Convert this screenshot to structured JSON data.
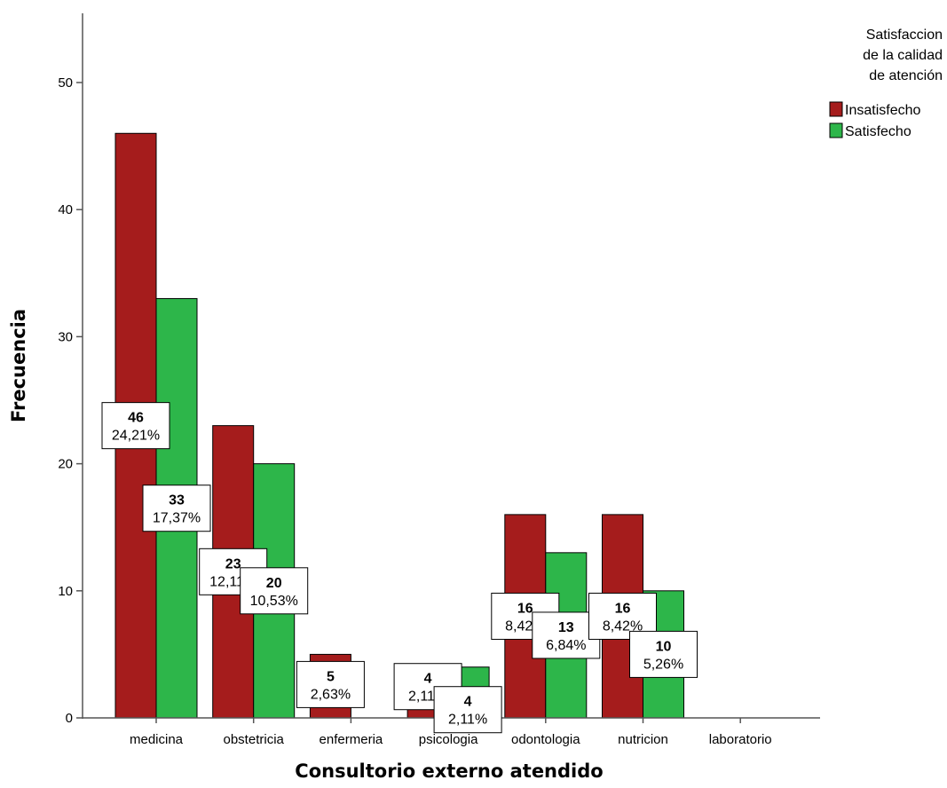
{
  "chart_data": {
    "type": "bar",
    "xlabel": "Consultorio externo atendido",
    "ylabel": "Frecuencia",
    "ylim": [
      0,
      55
    ],
    "yticks": [
      0,
      10,
      20,
      30,
      40,
      50
    ],
    "categories": [
      "medicina",
      "obstetricia",
      "enfermeria",
      "psicologia",
      "odontologia",
      "nutricion",
      "laboratorio"
    ],
    "legend_title": [
      "Satisfaccion",
      "de la calidad",
      "de atención"
    ],
    "legend_position": "top-right",
    "grid": false,
    "series": [
      {
        "name": "Insatisfecho",
        "color": "#a51c1c",
        "values": [
          46,
          23,
          5,
          4,
          16,
          16,
          0
        ],
        "count_labels": [
          "46",
          "23",
          "5",
          "4",
          "16",
          "16",
          ""
        ],
        "pct_labels": [
          "24,21%",
          "12,11%",
          "2,63%",
          "2,11%",
          "8,42%",
          "8,42%",
          ""
        ]
      },
      {
        "name": "Satisfecho",
        "color": "#2db64a",
        "values": [
          33,
          20,
          0,
          4,
          13,
          10,
          0
        ],
        "count_labels": [
          "33",
          "20",
          "",
          "4",
          "13",
          "10",
          ""
        ],
        "pct_labels": [
          "17,37%",
          "10,53%",
          "",
          "2,11%",
          "6,84%",
          "5,26%",
          ""
        ]
      }
    ]
  }
}
